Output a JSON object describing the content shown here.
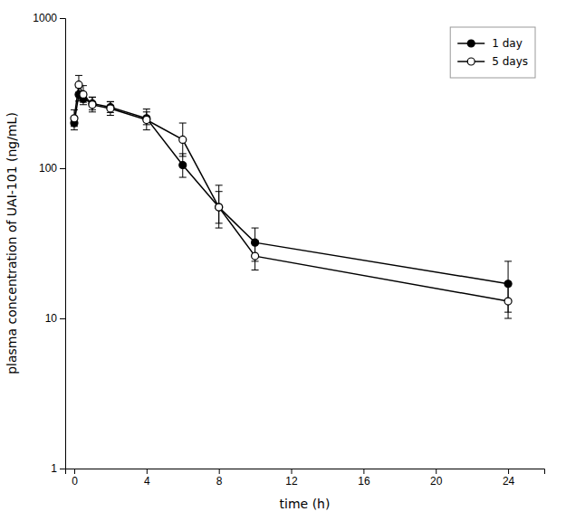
{
  "chart_data": {
    "type": "line",
    "xlabel": "time (h)",
    "ylabel": "plasma concentration of UAI-101 (ng/mL)",
    "x": [
      0,
      0.25,
      0.5,
      1,
      2,
      4,
      6,
      8,
      10,
      24
    ],
    "xlim": [
      -0.5,
      26
    ],
    "xticks": [
      0,
      4,
      8,
      12,
      16,
      20,
      24
    ],
    "ylim": [
      1,
      1000
    ],
    "yticks": [
      1,
      10,
      100,
      1000
    ],
    "log": "y",
    "grid": false,
    "legend": "upper-right",
    "series": [
      {
        "name": "1 day",
        "color": "black",
        "marker": "filled-circle",
        "line_style": "solid",
        "values": [
          200,
          310,
          290,
          270,
          255,
          215,
          105,
          55,
          32,
          17
        ],
        "err_lo": [
          20,
          30,
          25,
          25,
          20,
          20,
          18,
          12,
          8,
          6
        ],
        "err_hi": [
          20,
          35,
          30,
          28,
          22,
          22,
          20,
          15,
          8,
          7
        ]
      },
      {
        "name": "5 days",
        "color": "black",
        "marker": "open-circle",
        "line_style": "solid",
        "values": [
          215,
          360,
          310,
          265,
          250,
          210,
          155,
          55,
          26,
          13
        ],
        "err_lo": [
          25,
          40,
          35,
          28,
          25,
          30,
          35,
          15,
          5,
          3
        ],
        "err_hi": [
          30,
          55,
          45,
          32,
          28,
          38,
          45,
          22,
          7,
          4
        ]
      }
    ]
  }
}
